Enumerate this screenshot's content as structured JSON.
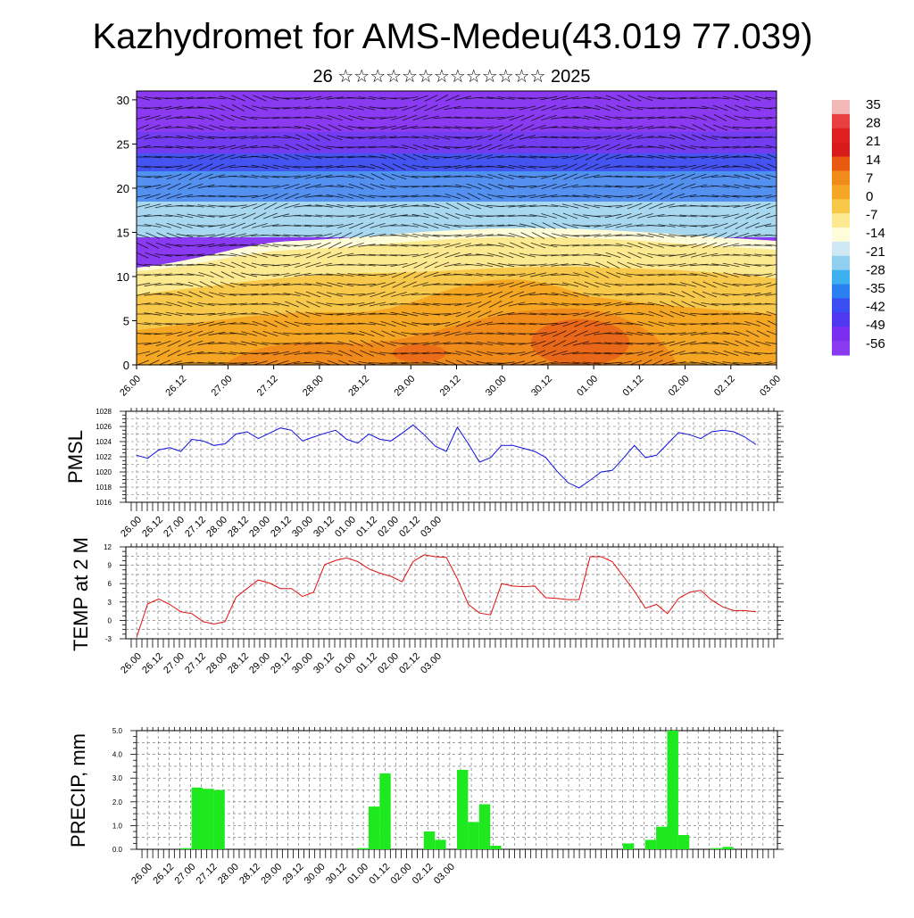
{
  "title": "Kazhydromet for AMS-Medeu(43.019 77.039)",
  "subtitle": "26 ☆☆☆☆☆☆☆☆☆☆☆☆☆ 2025",
  "time_labels": [
    "26.00",
    "26.12",
    "27.00",
    "27.12",
    "28.00",
    "28.12",
    "29.00",
    "29.12",
    "30.00",
    "30.12",
    "01.00",
    "01.12",
    "02.00",
    "02.12",
    "03.00"
  ],
  "chart_data": [
    {
      "type": "heatmap",
      "name": "vertical-section",
      "y_ticks": [
        "0",
        "5",
        "10",
        "15",
        "20",
        "25",
        "30"
      ],
      "ylim": [
        0,
        31
      ],
      "colorbar_labels": [
        "35",
        "28",
        "21",
        "14",
        "7",
        "0",
        "-7",
        "-14",
        "-21",
        "-28",
        "-35",
        "-42",
        "-49",
        "-56"
      ],
      "colorbar_colors": [
        "#f2b8b8",
        "#e84040",
        "#e02020",
        "#d81a1a",
        "#e85a10",
        "#f08a1a",
        "#f5a623",
        "#f8c84a",
        "#fde98f",
        "#fefcd9",
        "#cfe8f5",
        "#8fd0f0",
        "#3db0f0",
        "#2a7ff0",
        "#3a4df0",
        "#5038f0",
        "#7a2ef0",
        "#8a3af0"
      ],
      "field_colors": {
        "purple": "#8a3af0",
        "violet": "#6a3ef0",
        "blue": "#3a5af0",
        "mid_blue": "#4aa0f0",
        "light_blue": "#a8d8f0",
        "pale": "#fefcd9",
        "yellow": "#fde98f",
        "gold": "#f8c84a",
        "orange": "#f5a623",
        "deep_orange": "#f08a1a",
        "red_orange": "#e8601a"
      }
    },
    {
      "type": "line",
      "name": "pmsl",
      "ylabel": "PMSL",
      "y_ticks": [
        "1016",
        "1018",
        "1020",
        "1022",
        "1024",
        "1026",
        "1028"
      ],
      "ylim": [
        1016,
        1028
      ],
      "color": "#1010e0",
      "values": [
        1022.2,
        1021.8,
        1022.9,
        1023.2,
        1022.7,
        1024.3,
        1024.1,
        1023.5,
        1023.7,
        1025.0,
        1025.3,
        1024.4,
        1025.1,
        1025.8,
        1025.5,
        1024.1,
        1024.6,
        1025.1,
        1025.5,
        1024.3,
        1023.8,
        1025.0,
        1024.3,
        1024.1,
        1025.1,
        1026.2,
        1024.9,
        1023.4,
        1022.7,
        1025.9,
        1023.7,
        1021.3,
        1021.9,
        1023.5,
        1023.5,
        1023.1,
        1022.7,
        1021.9,
        1020.1,
        1018.6,
        1017.9,
        1018.9,
        1020.0,
        1020.2,
        1021.8,
        1023.5,
        1021.9,
        1022.2,
        1023.7,
        1025.2,
        1024.9,
        1024.4,
        1025.3,
        1025.5,
        1025.3,
        1024.6,
        1023.6
      ]
    },
    {
      "type": "line",
      "name": "temp",
      "ylabel": "TEMP at 2 M",
      "y_ticks": [
        "-3",
        "0",
        "3",
        "6",
        "9",
        "12"
      ],
      "ylim": [
        -3,
        12
      ],
      "color": "#e01010",
      "values": [
        -2.8,
        2.7,
        3.5,
        2.6,
        1.4,
        1.1,
        -0.2,
        -0.6,
        -0.2,
        3.8,
        5.2,
        6.6,
        6.1,
        5.2,
        5.2,
        3.9,
        4.6,
        9.1,
        9.8,
        10.2,
        9.6,
        8.4,
        7.7,
        7.2,
        6.3,
        9.6,
        10.7,
        10.4,
        10.3,
        6.8,
        2.6,
        1.2,
        0.9,
        6.0,
        5.6,
        5.5,
        5.6,
        3.7,
        3.6,
        3.4,
        3.4,
        10.4,
        10.4,
        9.6,
        7.2,
        4.8,
        2.0,
        2.6,
        1.1,
        3.6,
        4.6,
        4.9,
        3.3,
        2.2,
        1.6,
        1.6,
        1.4
      ]
    },
    {
      "type": "bar",
      "name": "precip",
      "ylabel": "PRECIP, mm",
      "y_ticks": [
        "0.0",
        "1.0",
        "2.0",
        "3.0",
        "4.0",
        "5.0"
      ],
      "ylim": [
        0,
        5
      ],
      "color": "#1ee81e",
      "values": [
        0,
        0,
        0,
        0.05,
        2.6,
        2.55,
        2.5,
        0,
        0,
        0,
        0,
        0,
        0,
        0,
        0,
        0,
        0,
        0,
        0,
        0.05,
        1.8,
        3.2,
        0,
        0,
        0,
        0.75,
        0.4,
        0,
        3.35,
        1.15,
        1.9,
        0.15,
        0,
        0,
        0,
        0,
        0,
        0,
        0,
        0,
        0,
        0,
        0,
        0.25,
        0,
        0.4,
        0.95,
        5.0,
        0.6,
        0,
        0,
        0.05,
        0.1,
        0,
        0,
        0
      ]
    }
  ]
}
